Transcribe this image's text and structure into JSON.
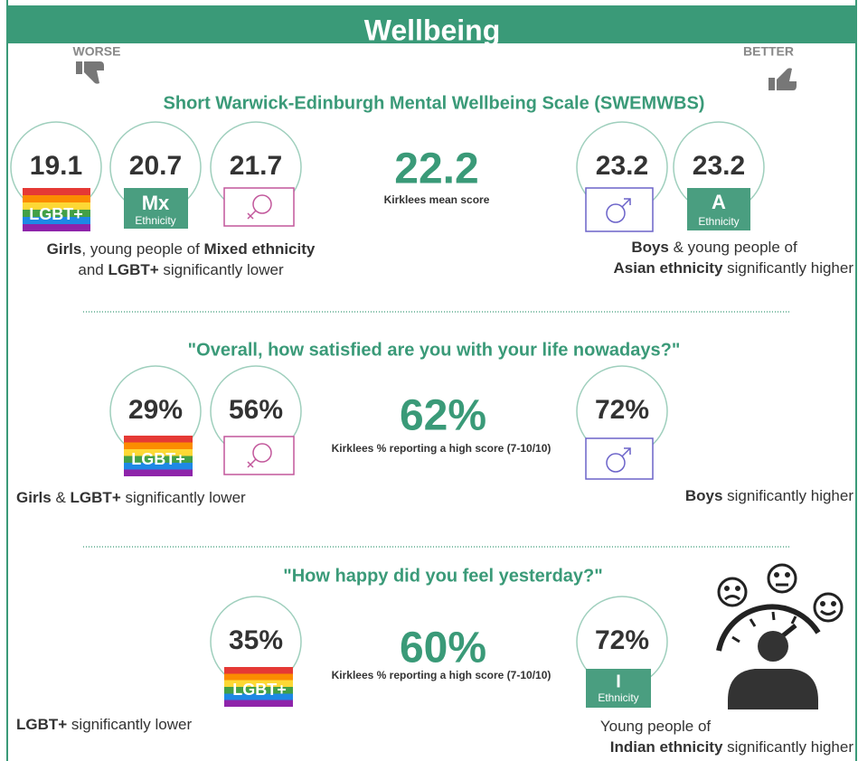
{
  "header": {
    "title": "Wellbeing",
    "worse": "WORSE",
    "better": "BETTER"
  },
  "sections": [
    {
      "title": "Short Warwick-Edinburgh Mental Wellbeing Scale (SWEMWBS)",
      "lower": [
        {
          "value": "19.1",
          "badge": "LGBT+"
        },
        {
          "value": "20.7",
          "badge": "Mx",
          "sub": "Ethnicity"
        },
        {
          "value": "21.7"
        }
      ],
      "mean": {
        "value": "22.2",
        "label": "Kirklees mean score"
      },
      "higher": [
        {
          "value": "23.2"
        },
        {
          "value": "23.2",
          "badge": "A",
          "sub": "Ethnicity"
        }
      ],
      "lower_note": [
        [
          "Girls",
          ", young people of ",
          "Mixed ethnicity"
        ],
        [
          "and ",
          "LGBT+",
          " significantly lower"
        ]
      ],
      "higher_note": [
        [
          "Boys",
          " & young people of"
        ],
        [
          "Asian ethnicity",
          " significantly higher"
        ]
      ]
    },
    {
      "title": "\"Overall, how satisfied are you with your life nowadays?\"",
      "lower": [
        {
          "value": "29%",
          "badge": "LGBT+"
        },
        {
          "value": "56%"
        }
      ],
      "mean": {
        "value": "62%",
        "label": "Kirklees % reporting a high score (7-10/10)"
      },
      "higher": [
        {
          "value": "72%"
        }
      ],
      "lower_note": [
        [
          "Girls",
          " & ",
          "LGBT+",
          " significantly lower"
        ]
      ],
      "higher_note": [
        [
          "Boys",
          " significantly higher"
        ]
      ]
    },
    {
      "title": "\"How happy did you feel yesterday?\"",
      "lower": [
        {
          "value": "35%",
          "badge": "LGBT+"
        }
      ],
      "mean": {
        "value": "60%",
        "label": "Kirklees % reporting a high score (7-10/10)"
      },
      "higher": [
        {
          "value": "72%",
          "badge": "I",
          "sub": "Ethnicity"
        }
      ],
      "lower_note": [
        [
          "LGBT+",
          " significantly lower"
        ]
      ],
      "higher_note": [
        [
          "Young people of"
        ],
        [
          "Indian ethnicity",
          " significantly higher"
        ]
      ]
    }
  ]
}
